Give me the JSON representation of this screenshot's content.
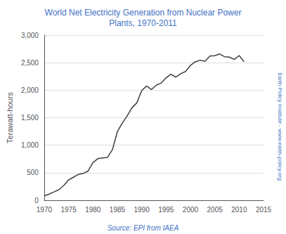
{
  "chart_data": {
    "type": "line",
    "title": "World Net Electricity Generation from Nuclear Power\nPlants, 1970-2011",
    "ylabel": "Terawatt-hours",
    "annotations": [
      "Source: EPI from IAEA",
      "Earth Policy Institute - www.earth-policy.org"
    ],
    "color": "#404040",
    "grid": true,
    "xlim": [
      1970,
      2015
    ],
    "xticks": [
      1970,
      1975,
      1980,
      1985,
      1990,
      1995,
      2000,
      2005,
      2010,
      2015
    ],
    "ylim": [
      0,
      3000
    ],
    "yticks": [
      0,
      500,
      {
        "value": 1000,
        "label": "1,000"
      },
      {
        "value": 1500,
        "label": "1,500"
      },
      {
        "value": 2000,
        "label": "2,000"
      },
      {
        "value": 2500,
        "label": "2,500"
      },
      {
        "value": 3000,
        "label": "3,000"
      }
    ],
    "x": [
      1970,
      1971,
      1972,
      1973,
      1974,
      1975,
      1976,
      1977,
      1978,
      1979,
      1980,
      1981,
      1982,
      1983,
      1984,
      1985,
      1986,
      1987,
      1988,
      1989,
      1990,
      1991,
      1992,
      1993,
      1994,
      1995,
      1996,
      1997,
      1998,
      1999,
      2000,
      2001,
      2002,
      2003,
      2004,
      2005,
      2006,
      2007,
      2008,
      2009,
      2010,
      2011
    ],
    "values": [
      79,
      111,
      152,
      191,
      268,
      370,
      418,
      470,
      487,
      530,
      684,
      755,
      770,
      780,
      920,
      1245,
      1400,
      1530,
      1680,
      1770,
      1992,
      2076,
      2011,
      2090,
      2130,
      2224,
      2290,
      2237,
      2300,
      2340,
      2450,
      2516,
      2545,
      2524,
      2619,
      2626,
      2658,
      2608,
      2601,
      2558,
      2630,
      2518
    ]
  }
}
